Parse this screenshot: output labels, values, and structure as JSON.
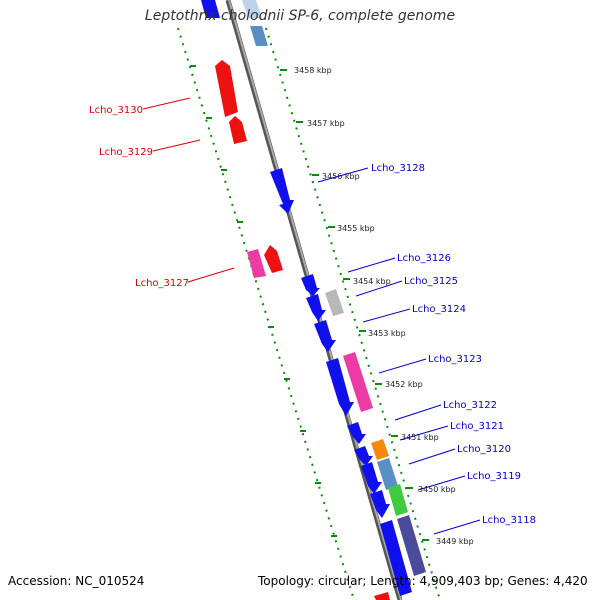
{
  "title": "Leptothrix cholodnii SP-6, complete genome",
  "footer": {
    "accession": "Accession: NC_010524",
    "summary": "Topology: circular; Length: 4,909,403 bp; Genes: 4,420"
  },
  "colors": {
    "left_labels": "#dd0000",
    "right_labels": "#0000cc",
    "tick_green": "#0b8a0b",
    "backbone": "#888888"
  },
  "kbp_ticks": [
    "3458 kbp",
    "3457 kbp",
    "3456 kbp",
    "3455 kbp",
    "3454 kbp",
    "3453 kbp",
    "3452 kbp",
    "3451 kbp",
    "3450 kbp",
    "3449 kbp"
  ],
  "left_labels": [
    "Lcho_3130",
    "Lcho_3129",
    "Lcho_3127"
  ],
  "right_labels": [
    "Lcho_3128",
    "Lcho_3126",
    "Lcho_3125",
    "Lcho_3124",
    "Lcho_3123",
    "Lcho_3122",
    "Lcho_3121",
    "Lcho_3120",
    "Lcho_3119",
    "Lcho_3118"
  ]
}
